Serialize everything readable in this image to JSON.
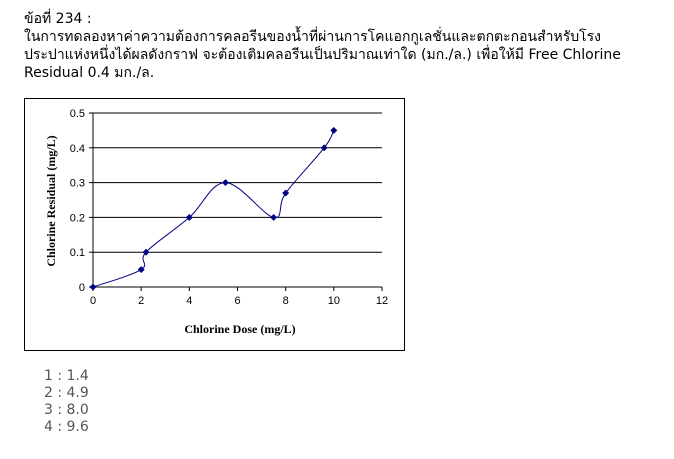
{
  "question": {
    "number": "ข้อที่ 234 :",
    "lines": [
      "ในการทดลองหาค่าความต้องการคลอรีนของน้ำที่ผ่านการโคแอกกูเลชั่นและตกตะกอนสำหรับโรง",
      "ประปาแห่งหนึ่งได้ผลดังกราฟ จะต้องเติมคลอรีนเป็นปริมาณเท่าใด (มก./ล.) เพื่อให้มี Free Chlorine",
      "Residual 0.4 มก./ล."
    ]
  },
  "chart_data": {
    "type": "scatter",
    "xlabel": "Chlorine Dose (mg/L)",
    "ylabel": "Chlorine Residual (mg/L)",
    "xlim": [
      0,
      12
    ],
    "ylim": [
      0,
      0.5
    ],
    "xticks": [
      "0",
      "2",
      "4",
      "6",
      "8",
      "10",
      "12"
    ],
    "yticks": [
      "0",
      "0.1",
      "0.2",
      "0.3",
      "0.4",
      "0.5"
    ],
    "grid": "horizontal",
    "smooth_line": true,
    "marker": "diamond",
    "color": "#000080",
    "series": [
      {
        "x": [
          0,
          2,
          2.2,
          4,
          5.5,
          7.5,
          8,
          9.6,
          10
        ],
        "y": [
          0,
          0.05,
          0.1,
          0.2,
          0.3,
          0.2,
          0.27,
          0.4,
          0.45
        ]
      }
    ]
  },
  "choices": [
    "1 : 1.4",
    "2 : 4.9",
    "3 : 8.0",
    "4 : 9.6"
  ]
}
